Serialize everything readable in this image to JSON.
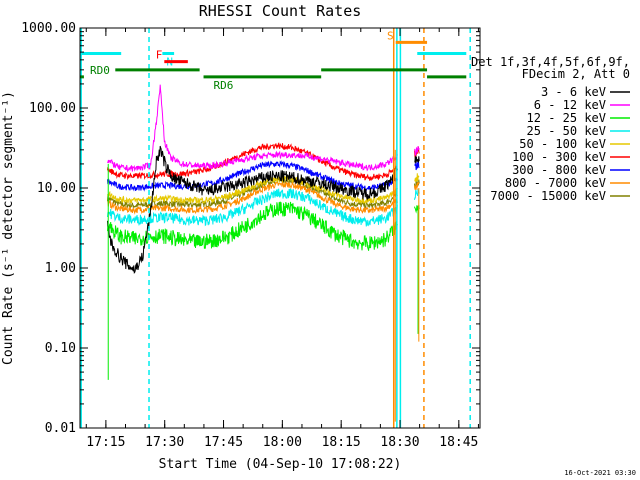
{
  "chart_data": {
    "type": "line",
    "title": "RHESSI Count Rates",
    "xlabel": "Start Time (04-Sep-10 17:08:22)",
    "ylabel": "Count Rate (s⁻¹ detector segment⁻¹)",
    "yscale": "log",
    "ylim": [
      0.01,
      1000
    ],
    "xlim_minutes_after_start": [
      0,
      102
    ],
    "x_tick_labels": [
      "17:15",
      "17:30",
      "17:45",
      "18:00",
      "18:15",
      "18:30",
      "18:45"
    ],
    "x_tick_minutes_after_start": [
      6.6,
      21.6,
      36.6,
      51.6,
      66.6,
      81.6,
      96.6
    ],
    "y_tick_labels": [
      "0.01",
      "0.10",
      "1.00",
      "10.00",
      "100.00",
      "1000.00"
    ],
    "y_tick_values": [
      0.01,
      0.1,
      1,
      10,
      100,
      1000
    ],
    "legend_header": [
      "Det 1f,3f,4f,5f,6f,9f,",
      "FDecim 2, Att 0"
    ],
    "legend_placement": "right",
    "timestamp": "16-Oct-2021 03:30",
    "series": [
      {
        "name": "3 - 6 keV",
        "color": "#000000",
        "x": [
          7,
          8,
          10,
          12,
          14,
          16,
          18,
          19.5,
          20.5,
          22,
          24,
          28,
          32,
          36,
          40,
          44,
          48,
          52,
          56,
          60,
          64,
          68,
          72,
          76,
          80,
          81
        ],
        "y": [
          3.5,
          2.0,
          1.4,
          1.1,
          0.95,
          1.4,
          5,
          22,
          30,
          18,
          13,
          11,
          9,
          10,
          11,
          12.5,
          14,
          14,
          13,
          12,
          10.5,
          9.5,
          8.5,
          9,
          13,
          20
        ]
      },
      {
        "name": "6 - 12 keV",
        "color": "#ff00ff",
        "x": [
          7,
          10,
          14,
          18,
          19.5,
          20.5,
          21.5,
          23,
          26,
          30,
          34,
          38,
          42,
          46,
          50,
          54,
          58,
          62,
          66,
          70,
          74,
          78,
          81
        ],
        "y": [
          22,
          18,
          17.5,
          19,
          70,
          190,
          40,
          24,
          20,
          19,
          19,
          21,
          23,
          25,
          26,
          26,
          25,
          23,
          21,
          19,
          18,
          20,
          25
        ]
      },
      {
        "name": "12 - 25 keV",
        "color": "#00ee00",
        "x": [
          7,
          10,
          14,
          18,
          22,
          26,
          30,
          34,
          38,
          42,
          46,
          50,
          54,
          58,
          62,
          66,
          70,
          74,
          78,
          81
        ],
        "y": [
          3.5,
          2.5,
          2.3,
          2.5,
          2.5,
          2.2,
          2.1,
          2.2,
          2.5,
          3.3,
          4.5,
          5.5,
          5.5,
          4.5,
          3.3,
          2.5,
          2.1,
          2.0,
          2.3,
          3.5
        ]
      },
      {
        "name": "25 - 50 keV",
        "color": "#00eeee",
        "x": [
          7,
          10,
          14,
          18,
          22,
          26,
          30,
          34,
          38,
          42,
          46,
          50,
          54,
          58,
          62,
          66,
          70,
          74,
          78,
          81
        ],
        "y": [
          5.0,
          4.2,
          4.0,
          4.2,
          4.3,
          4.0,
          3.9,
          4.0,
          4.5,
          5.5,
          7.0,
          8.5,
          8.5,
          7.5,
          5.8,
          4.6,
          4.0,
          3.8,
          4.2,
          5.5
        ]
      },
      {
        "name": "50 - 100 keV",
        "color": "#e6c800",
        "x": [
          7,
          10,
          14,
          18,
          22,
          26,
          30,
          34,
          38,
          42,
          46,
          50,
          54,
          58,
          62,
          66,
          70,
          74,
          78,
          81
        ],
        "y": [
          8.5,
          7.2,
          7.0,
          7.2,
          7.4,
          7.1,
          7.0,
          7.2,
          8.0,
          9.5,
          11.5,
          13,
          13,
          11.5,
          9.5,
          8.0,
          7.2,
          7.0,
          7.5,
          9.5
        ]
      },
      {
        "name": "100 - 300 keV",
        "color": "#ff0000",
        "x": [
          7,
          10,
          14,
          18,
          22,
          26,
          30,
          34,
          38,
          42,
          46,
          50,
          54,
          58,
          62,
          66,
          70,
          74,
          78,
          81
        ],
        "y": [
          17,
          14.5,
          14,
          14.5,
          15,
          15,
          16,
          18,
          22,
          27,
          32,
          34,
          32,
          27,
          21,
          17,
          14.5,
          13.5,
          14.5,
          18
        ]
      },
      {
        "name": "300 - 800 keV",
        "color": "#0000ff",
        "x": [
          7,
          10,
          14,
          18,
          22,
          26,
          30,
          34,
          38,
          42,
          46,
          50,
          54,
          58,
          62,
          66,
          70,
          74,
          78,
          81
        ],
        "y": [
          12,
          10.5,
          10,
          10.5,
          10.8,
          10.5,
          10.8,
          11.5,
          13.5,
          16,
          19,
          20,
          19,
          16.5,
          13.5,
          11.5,
          10.5,
          10,
          10.8,
          13
        ]
      },
      {
        "name": "800 - 7000 keV",
        "color": "#ff8c00",
        "x": [
          7,
          10,
          14,
          18,
          22,
          26,
          30,
          34,
          38,
          42,
          46,
          50,
          54,
          58,
          62,
          66,
          70,
          74,
          78,
          81
        ],
        "y": [
          6.5,
          5.5,
          5.3,
          5.5,
          5.6,
          5.4,
          5.3,
          5.5,
          6.2,
          7.5,
          9.5,
          11,
          11,
          9.5,
          7.5,
          6.0,
          5.4,
          5.2,
          5.6,
          7.0
        ]
      },
      {
        "name": "7000 - 15000 keV",
        "color": "#808000",
        "x": [
          7,
          10,
          14,
          18,
          22,
          26,
          30,
          34,
          38,
          42,
          46,
          50,
          54,
          58,
          62,
          66,
          70,
          74,
          78,
          81
        ],
        "y": [
          7.5,
          6.3,
          6.0,
          6.3,
          6.4,
          6.2,
          6.2,
          6.4,
          7.2,
          8.7,
          10.8,
          12.5,
          12.5,
          10.8,
          8.6,
          7.0,
          6.3,
          6.0,
          6.5,
          8.2
        ]
      }
    ],
    "late_segment_x": [
      85.3,
      86.5
    ],
    "late_segment_y": {
      "3 - 6 keV": [
        22,
        24
      ],
      "6 - 12 keV": [
        28,
        30
      ],
      "12 - 25 keV": [
        5.5,
        6
      ],
      "25 - 50 keV": [
        8,
        9
      ],
      "50 - 100 keV": [
        13,
        14
      ],
      "100 - 300 keV": [
        26,
        30
      ],
      "300 - 800 keV": [
        18,
        20
      ],
      "800 - 7000 keV": [
        10,
        11
      ],
      "7000 - 15000 keV": [
        11,
        12
      ]
    },
    "state_bars": [
      {
        "label": "",
        "color": "#00eeee",
        "y": 480,
        "x": [
          0,
          10.5
        ]
      },
      {
        "label": "N",
        "color": "#00eeee",
        "y": 480,
        "x": [
          21,
          24
        ]
      },
      {
        "label": "",
        "color": "#00eeee",
        "y": 480,
        "x": [
          86,
          98.5
        ]
      },
      {
        "label": "F",
        "color": "#ff0000",
        "y": 380,
        "x": [
          21.5,
          27.5
        ]
      },
      {
        "label": "S",
        "color": "#ff8c00",
        "y": 660,
        "x": [
          80.5,
          88.5
        ]
      },
      {
        "label": "RD0",
        "color": "#008000",
        "y": 245,
        "x": [
          0,
          1
        ]
      },
      {
        "label": "",
        "color": "#008000",
        "y": 300,
        "x": [
          9,
          30.5
        ]
      },
      {
        "label": "RD6",
        "color": "#008000",
        "y": 245,
        "x": [
          31.5,
          61.5
        ]
      },
      {
        "label": "",
        "color": "#008000",
        "y": 300,
        "x": [
          61.5,
          88.5
        ]
      },
      {
        "label": "",
        "color": "#008000",
        "y": 245,
        "x": [
          88.5,
          98.5
        ]
      }
    ],
    "vertical_markers": [
      {
        "x": 0.3,
        "color": "#00eeee",
        "style": "solid"
      },
      {
        "x": 17.6,
        "color": "#00eeee",
        "style": "dashed"
      },
      {
        "x": 80.0,
        "color": "#ff8c00",
        "style": "solid"
      },
      {
        "x": 80.8,
        "color": "#00eeee",
        "style": "solid"
      },
      {
        "x": 81.7,
        "color": "#00eeee",
        "style": "solid"
      },
      {
        "x": 87.7,
        "color": "#ff8c00",
        "style": "dashed"
      },
      {
        "x": 99.5,
        "color": "#00eeee",
        "style": "dashed"
      }
    ],
    "spike_marker": {
      "x": 7.2,
      "y": [
        0.04,
        20
      ]
    }
  }
}
